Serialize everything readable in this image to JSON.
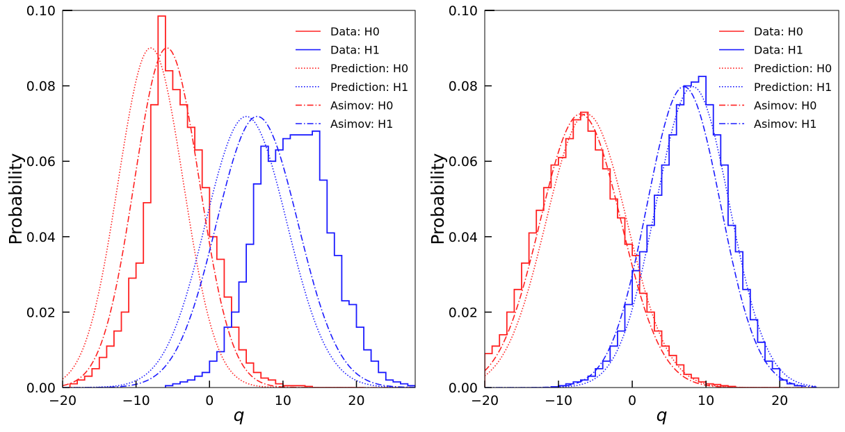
{
  "chart_data": [
    {
      "type": "line",
      "xlabel": "q",
      "ylabel": "Probability",
      "xlim": [
        -20,
        28
      ],
      "ylim": [
        0,
        0.1
      ],
      "xticks": [
        "−20",
        "−10",
        "0",
        "10",
        "20"
      ],
      "yticks": [
        "0.00",
        "0.02",
        "0.04",
        "0.06",
        "0.08",
        "0.10"
      ],
      "legend_placement": "upper-right",
      "grid": false,
      "series": [
        {
          "name": "Data: H0",
          "style": "step",
          "color": "#ff2020",
          "x": [
            -19,
            -18,
            -17,
            -16,
            -15,
            -14,
            -13,
            -12,
            -11,
            -10,
            -9,
            -8,
            -7,
            -6,
            -5,
            -4,
            -3,
            -2,
            -1,
            0,
            1,
            2,
            3,
            4,
            5,
            6,
            7,
            8,
            9,
            10,
            11,
            12,
            13,
            14,
            15,
            16,
            17,
            18,
            19,
            20
          ],
          "y": [
            0.001,
            0.002,
            0.003,
            0.005,
            0.008,
            0.011,
            0.015,
            0.02,
            0.029,
            0.033,
            0.049,
            0.075,
            0.0985,
            0.084,
            0.079,
            0.075,
            0.069,
            0.063,
            0.053,
            0.04,
            0.034,
            0.024,
            0.016,
            0.01,
            0.0065,
            0.004,
            0.0025,
            0.002,
            0.001,
            0.0005,
            0.0005,
            0.0005,
            0.0003,
            0,
            0,
            0,
            0,
            0,
            0,
            0
          ]
        },
        {
          "name": "Data: H1",
          "style": "step",
          "color": "#1a1aff",
          "x": [
            -6,
            -5,
            -4,
            -3,
            -2,
            -1,
            0,
            1,
            2,
            3,
            4,
            5,
            6,
            7,
            8,
            9,
            10,
            11,
            12,
            13,
            14,
            15,
            16,
            17,
            18,
            19,
            20,
            21,
            22,
            23,
            24,
            25,
            26,
            27
          ],
          "y": [
            0.0005,
            0.001,
            0.0015,
            0.002,
            0.003,
            0.004,
            0.007,
            0.0095,
            0.016,
            0.02,
            0.028,
            0.038,
            0.054,
            0.064,
            0.06,
            0.063,
            0.066,
            0.067,
            0.067,
            0.067,
            0.068,
            0.055,
            0.041,
            0.035,
            0.023,
            0.022,
            0.016,
            0.01,
            0.007,
            0.004,
            0.002,
            0.0015,
            0.001,
            0.0005
          ]
        },
        {
          "name": "Prediction: H0",
          "style": "dotted",
          "color": "#ff2020",
          "mu": -8,
          "sigma": 4.43,
          "x_range": [
            -20,
            28
          ]
        },
        {
          "name": "Prediction: H1",
          "style": "dotted",
          "color": "#1a1aff",
          "mu": 5,
          "sigma": 5.55,
          "x_range": [
            -20,
            28
          ]
        },
        {
          "name": "Asimov: H0",
          "style": "dashdot",
          "color": "#ff2020",
          "mu": -5.8,
          "sigma": 4.43,
          "x_range": [
            -20,
            28
          ]
        },
        {
          "name": "Asimov: H1",
          "style": "dashdot",
          "color": "#1a1aff",
          "mu": 6.5,
          "sigma": 5.55,
          "x_range": [
            -20,
            28
          ]
        }
      ]
    },
    {
      "type": "line",
      "xlabel": "q",
      "ylabel": "Probability",
      "xlim": [
        -20,
        28
      ],
      "ylim": [
        0,
        0.1
      ],
      "xticks": [
        "−20",
        "−10",
        "0",
        "10",
        "20"
      ],
      "yticks": [
        "0.00",
        "0.02",
        "0.04",
        "0.06",
        "0.08",
        "0.10"
      ],
      "legend_placement": "upper-right",
      "grid": false,
      "series": [
        {
          "name": "Data: H0",
          "style": "step",
          "color": "#ff2020",
          "x": [
            -20,
            -19,
            -18,
            -17,
            -16,
            -15,
            -14,
            -13,
            -12,
            -11,
            -10,
            -9,
            -8,
            -7,
            -6,
            -5,
            -4,
            -3,
            -2,
            -1,
            0,
            1,
            2,
            3,
            4,
            5,
            6,
            7,
            8,
            9,
            10,
            11,
            12,
            13,
            14,
            15,
            16,
            17,
            18,
            19
          ],
          "y": [
            0.009,
            0.011,
            0.014,
            0.02,
            0.026,
            0.033,
            0.041,
            0.047,
            0.053,
            0.059,
            0.061,
            0.066,
            0.071,
            0.073,
            0.068,
            0.063,
            0.058,
            0.05,
            0.045,
            0.038,
            0.035,
            0.025,
            0.02,
            0.015,
            0.011,
            0.0085,
            0.006,
            0.0035,
            0.0025,
            0.0015,
            0.001,
            0.0008,
            0.0005,
            0.0003,
            0,
            0,
            0,
            0,
            0,
            0
          ]
        },
        {
          "name": "Data: H1",
          "style": "step",
          "color": "#1a1aff",
          "x": [
            -11,
            -10,
            -9,
            -8,
            -7,
            -6,
            -5,
            -4,
            -3,
            -2,
            -1,
            0,
            1,
            2,
            3,
            4,
            5,
            6,
            7,
            8,
            9,
            10,
            11,
            12,
            13,
            14,
            15,
            16,
            17,
            18,
            19,
            20,
            21,
            22
          ],
          "y": [
            0.0002,
            0.0005,
            0.001,
            0.0015,
            0.002,
            0.003,
            0.005,
            0.007,
            0.011,
            0.015,
            0.022,
            0.031,
            0.036,
            0.043,
            0.051,
            0.059,
            0.067,
            0.075,
            0.08,
            0.081,
            0.0825,
            0.075,
            0.067,
            0.059,
            0.043,
            0.036,
            0.026,
            0.018,
            0.012,
            0.007,
            0.005,
            0.002,
            0.001,
            0.0005
          ]
        },
        {
          "name": "Prediction: H0",
          "style": "dotted",
          "color": "#ff2020",
          "mu": -6.2,
          "sigma": 5.5,
          "x_range": [
            -20,
            25
          ]
        },
        {
          "name": "Prediction: H1",
          "style": "dotted",
          "color": "#1a1aff",
          "mu": 8.2,
          "sigma": 5.0,
          "x_range": [
            -20,
            25
          ]
        },
        {
          "name": "Asimov: H0",
          "style": "dashdot",
          "color": "#ff2020",
          "mu": -7.0,
          "sigma": 5.5,
          "x_range": [
            -20,
            25
          ]
        },
        {
          "name": "Asimov: H1",
          "style": "dashdot",
          "color": "#1a1aff",
          "mu": 7.0,
          "sigma": 5.0,
          "x_range": [
            -20,
            25
          ]
        }
      ]
    }
  ]
}
